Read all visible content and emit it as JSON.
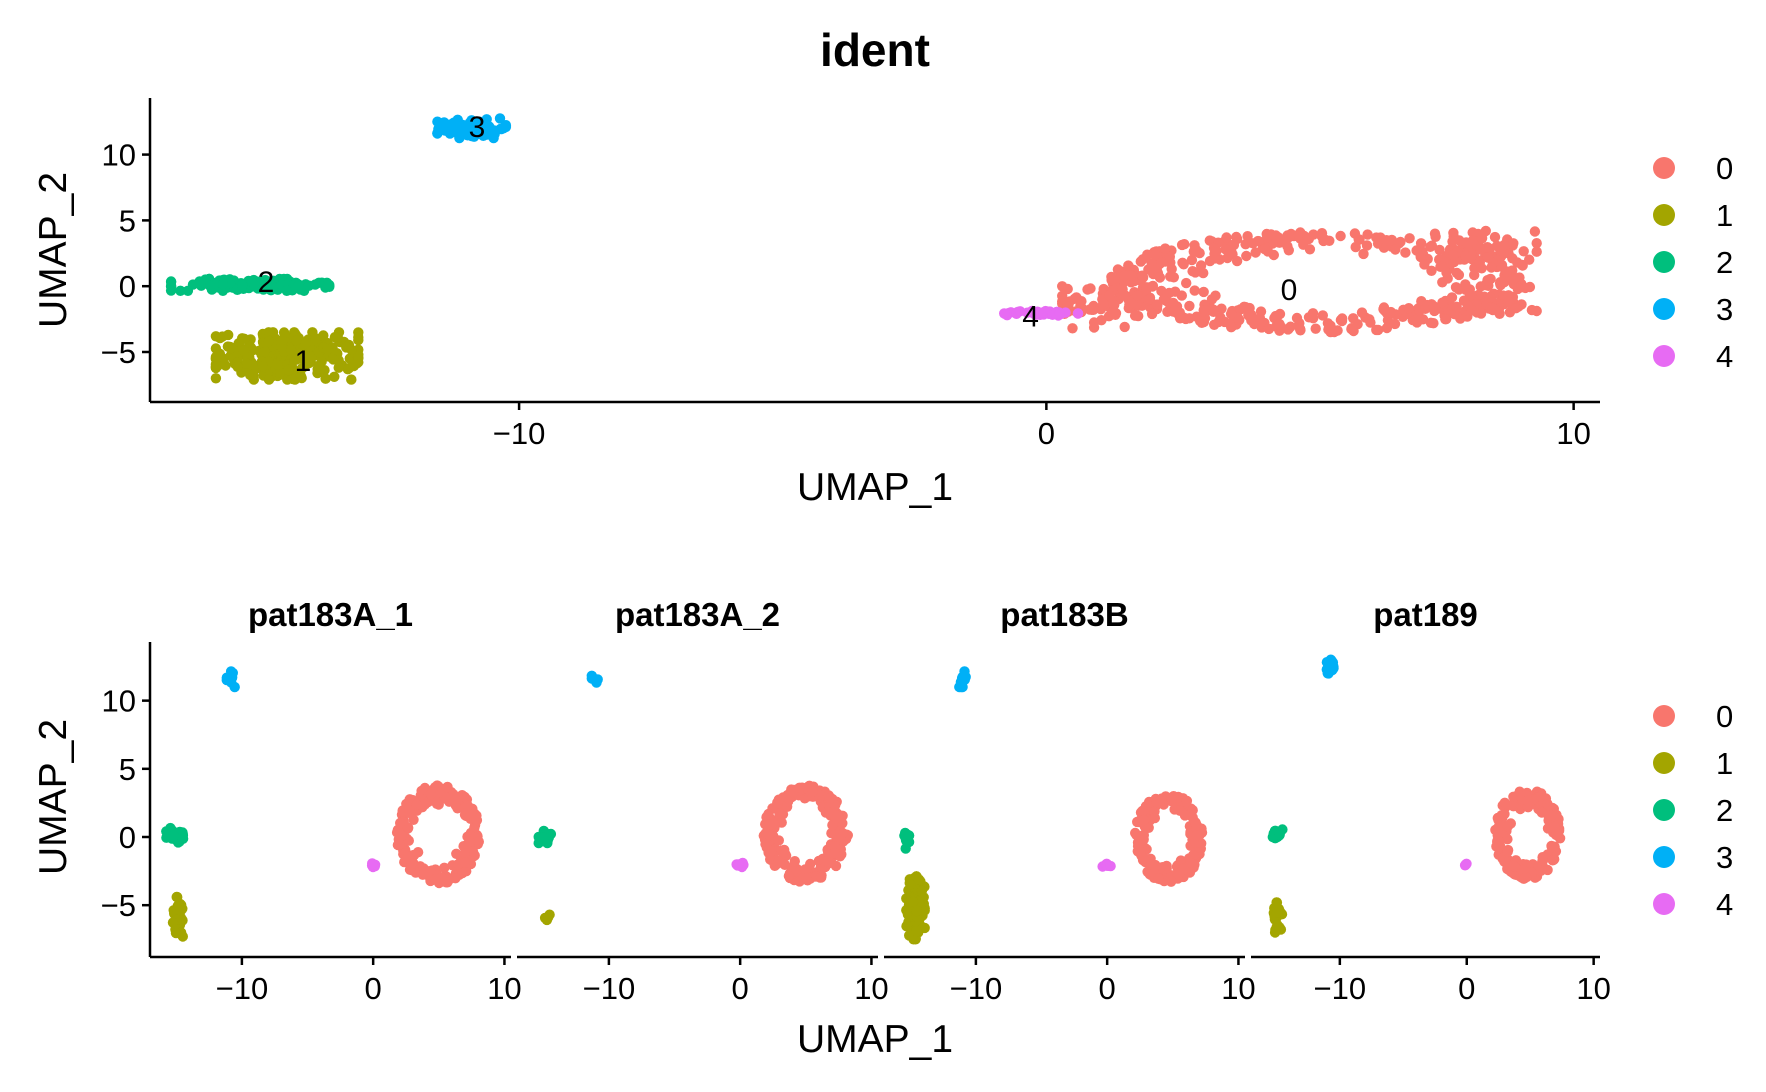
{
  "chart_data": [
    {
      "type": "scatter",
      "title": "ident",
      "xlabel": "UMAP_1",
      "ylabel": "UMAP_2",
      "xlim": [
        -17,
        10.5
      ],
      "ylim": [
        -8.8,
        14.3
      ],
      "xticks": [
        -10,
        0,
        10
      ],
      "yticks": [
        -5,
        0,
        5,
        10
      ],
      "grid": false,
      "legend_position": "right",
      "series": [
        {
          "name": "0",
          "color": "#F8766D",
          "cluster_label": {
            "text": "0",
            "x": 4.6,
            "y": -0.3
          },
          "blobs": [
            {
              "cx": 5.2,
              "cy": 0.3,
              "rx": 4.0,
              "ry": 3.8,
              "n": 420,
              "ring": true
            },
            {
              "cx": 1.2,
              "cy": -1.2,
              "rx": 0.9,
              "ry": 2.0,
              "n": 80,
              "ring": false
            },
            {
              "cx": 8.2,
              "cy": 2.6,
              "rx": 1.1,
              "ry": 1.6,
              "n": 80,
              "ring": false
            },
            {
              "cx": 8.0,
              "cy": -1.6,
              "rx": 1.3,
              "ry": 0.5,
              "n": 50,
              "ring": false
            },
            {
              "cx": 0.55,
              "cy": -1.9,
              "rx": 0.5,
              "ry": 0.2,
              "n": 8,
              "ring": false
            }
          ]
        },
        {
          "name": "1",
          "color": "#A3A500",
          "cluster_label": {
            "text": "1",
            "x": -14.1,
            "y": -5.7
          },
          "blobs": [
            {
              "cx": -14.4,
              "cy": -5.3,
              "rx": 1.35,
              "ry": 1.8,
              "n": 260,
              "ring": false
            }
          ]
        },
        {
          "name": "2",
          "color": "#00BF7D",
          "cluster_label": {
            "text": "2",
            "x": -14.8,
            "y": 0.3
          },
          "blobs": [
            {
              "cx": -15.1,
              "cy": 0.1,
              "rx": 1.5,
              "ry": 0.45,
              "n": 160,
              "ring": false
            }
          ]
        },
        {
          "name": "3",
          "color": "#00B0F6",
          "cluster_label": {
            "text": "3",
            "x": -10.8,
            "y": 12.1
          },
          "blobs": [
            {
              "cx": -10.9,
              "cy": 12.0,
              "rx": 0.65,
              "ry": 0.75,
              "n": 90,
              "ring": false
            }
          ]
        },
        {
          "name": "4",
          "color": "#E76BF3",
          "cluster_label": {
            "text": "4",
            "x": -0.3,
            "y": -2.3
          },
          "blobs": [
            {
              "cx": -0.1,
              "cy": -2.05,
              "rx": 0.7,
              "ry": 0.2,
              "n": 40,
              "ring": false
            }
          ]
        }
      ]
    },
    {
      "type": "scatter",
      "xlabel": "UMAP_1",
      "ylabel": "UMAP_2",
      "xlim": [
        -17,
        10.5
      ],
      "ylim": [
        -8.8,
        14.3
      ],
      "xticks": [
        -10,
        0,
        10
      ],
      "yticks": [
        -5,
        0,
        5,
        10
      ],
      "grid": false,
      "legend_position": "right",
      "legend": [
        "0",
        "1",
        "2",
        "3",
        "4"
      ],
      "colors": {
        "0": "#F8766D",
        "1": "#A3A500",
        "2": "#00BF7D",
        "3": "#00B0F6",
        "4": "#E76BF3"
      },
      "facets": [
        {
          "name": "pat183A_1",
          "blobs": [
            {
              "cluster": "3",
              "cx": -10.8,
              "cy": 11.6,
              "rx": 0.35,
              "ry": 0.65,
              "n": 10,
              "ring": false
            },
            {
              "cluster": "2",
              "cx": -15.0,
              "cy": 0.1,
              "rx": 0.75,
              "ry": 0.55,
              "n": 40,
              "ring": false
            },
            {
              "cluster": "1",
              "cx": -14.8,
              "cy": -6.0,
              "rx": 0.55,
              "ry": 1.6,
              "n": 30,
              "ring": false
            },
            {
              "cluster": "0",
              "cx": 5.0,
              "cy": 0.2,
              "rx": 3.2,
              "ry": 3.6,
              "n": 200,
              "ring": true
            },
            {
              "cluster": "4",
              "cx": 0.0,
              "cy": -2.05,
              "rx": 0.3,
              "ry": 0.15,
              "n": 6,
              "ring": false
            }
          ]
        },
        {
          "name": "pat183A_2",
          "blobs": [
            {
              "cluster": "3",
              "cx": -11.0,
              "cy": 11.8,
              "rx": 0.3,
              "ry": 0.7,
              "n": 5,
              "ring": false
            },
            {
              "cluster": "2",
              "cx": -14.8,
              "cy": 0.0,
              "rx": 0.55,
              "ry": 0.45,
              "n": 15,
              "ring": false
            },
            {
              "cluster": "1",
              "cx": -14.8,
              "cy": -5.9,
              "rx": 0.4,
              "ry": 0.2,
              "n": 5,
              "ring": false
            },
            {
              "cluster": "0",
              "cx": 5.0,
              "cy": 0.2,
              "rx": 3.2,
              "ry": 3.6,
              "n": 200,
              "ring": true
            },
            {
              "cluster": "4",
              "cx": 0.0,
              "cy": -2.05,
              "rx": 0.35,
              "ry": 0.15,
              "n": 10,
              "ring": false
            }
          ]
        },
        {
          "name": "pat183B",
          "blobs": [
            {
              "cluster": "3",
              "cx": -11.0,
              "cy": 11.8,
              "rx": 0.3,
              "ry": 0.8,
              "n": 10,
              "ring": false
            },
            {
              "cluster": "2",
              "cx": -15.2,
              "cy": -0.3,
              "rx": 0.35,
              "ry": 0.6,
              "n": 10,
              "ring": false
            },
            {
              "cluster": "1",
              "cx": -14.6,
              "cy": -5.2,
              "rx": 0.7,
              "ry": 2.3,
              "n": 130,
              "ring": false
            },
            {
              "cluster": "0",
              "cx": 4.7,
              "cy": -0.1,
              "rx": 2.6,
              "ry": 3.3,
              "n": 140,
              "ring": true
            },
            {
              "cluster": "4",
              "cx": 0.0,
              "cy": -2.05,
              "rx": 0.35,
              "ry": 0.15,
              "n": 8,
              "ring": false
            }
          ]
        },
        {
          "name": "pat189",
          "blobs": [
            {
              "cluster": "3",
              "cx": -10.8,
              "cy": 12.4,
              "rx": 0.3,
              "ry": 0.6,
              "n": 30,
              "ring": false
            },
            {
              "cluster": "2",
              "cx": -14.9,
              "cy": 0.1,
              "rx": 0.5,
              "ry": 0.45,
              "n": 15,
              "ring": false
            },
            {
              "cluster": "1",
              "cx": -14.9,
              "cy": -5.7,
              "rx": 0.35,
              "ry": 1.3,
              "n": 25,
              "ring": false
            },
            {
              "cluster": "0",
              "cx": 4.8,
              "cy": 0.2,
              "rx": 2.6,
              "ry": 3.3,
              "n": 170,
              "ring": true
            },
            {
              "cluster": "4",
              "cx": 0.0,
              "cy": -2.05,
              "rx": 0.2,
              "ry": 0.1,
              "n": 3,
              "ring": false
            }
          ]
        }
      ]
    }
  ]
}
